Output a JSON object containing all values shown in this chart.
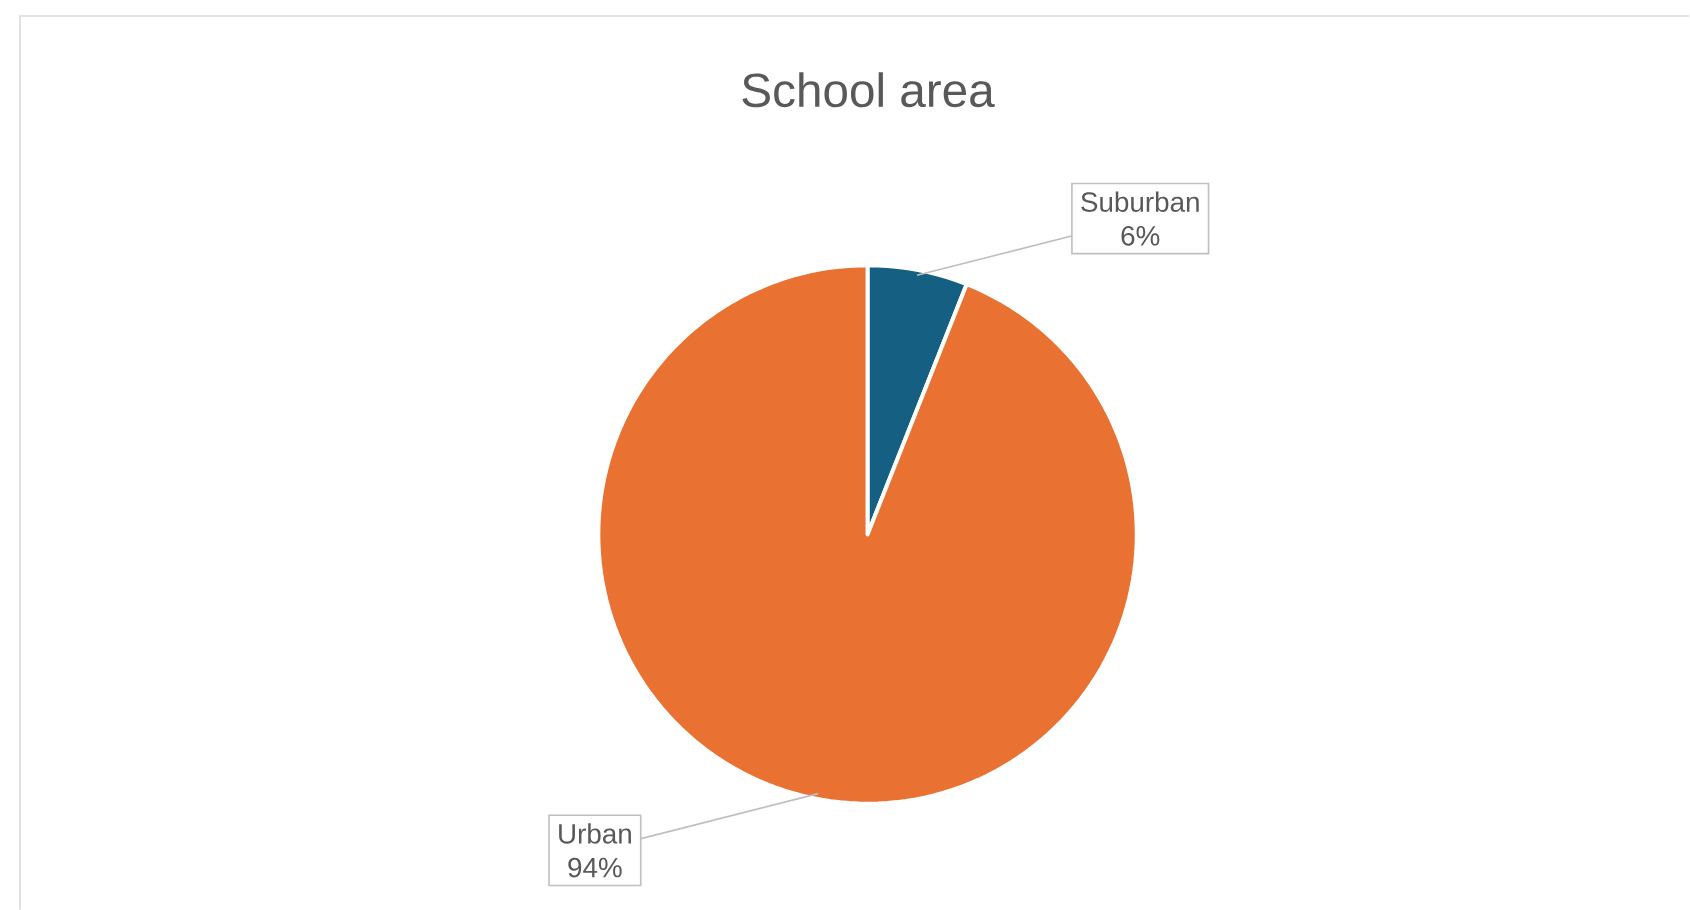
{
  "chart_data": {
    "type": "pie",
    "title": "School area",
    "categories": [
      "Suburban",
      "Urban"
    ],
    "values": [
      6,
      94
    ],
    "colors": [
      "#156082",
      "#e97132"
    ],
    "value_labels": [
      "6%",
      "94%"
    ]
  }
}
